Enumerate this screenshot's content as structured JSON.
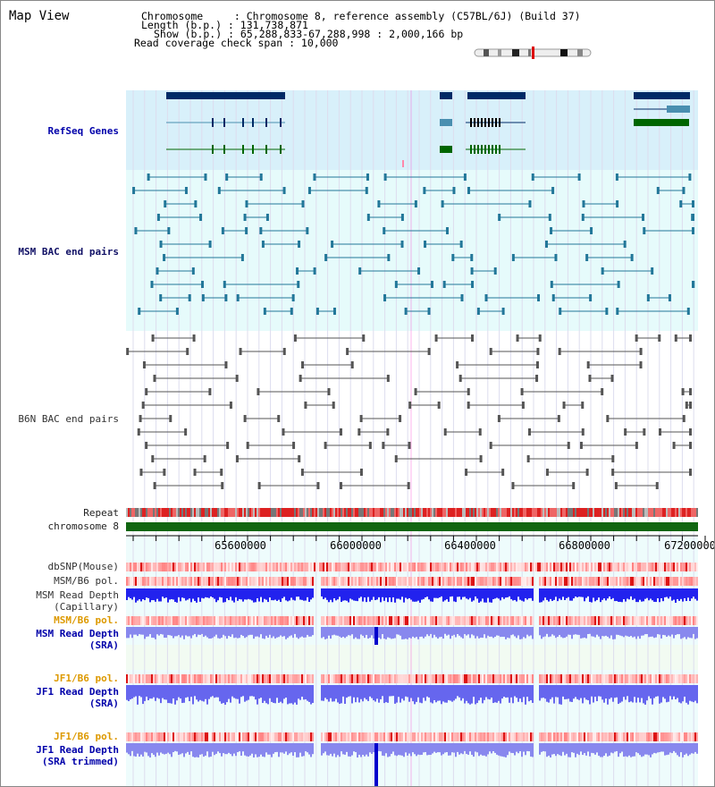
{
  "header": {
    "title": "Map View",
    "chromosome_line": "Chromosome     : Chromosome 8, reference assembly (C57BL/6J) (Build 37)",
    "length_line": "Length (b.p.) : 131,738,871",
    "show_line": "Show (b.p.) : 65,288,833-67,288,998 : 2,000,166 bp",
    "coverage_line": "Read coverage check span : 10,000"
  },
  "tracks": {
    "refseq": "RefSeq Genes",
    "msm_bac": "MSM BAC end pairs",
    "b6n_bac": "B6N BAC end pairs",
    "repeat": "Repeat",
    "chromosome": "chromosome 8",
    "dbsnp": "dbSNP(Mouse)",
    "msm_b6_pol": "MSM/B6 pol.",
    "msm_depth_cap_1": "MSM Read Depth",
    "msm_depth_cap_2": "(Capillary)",
    "msm_b6_pol_2": "MSM/B6 pol.",
    "msm_depth_sra_1": "MSM Read Depth",
    "msm_depth_sra_2": "(SRA)",
    "jf1_b6_pol": "JF1/B6 pol.",
    "jf1_depth_sra_1": "JF1 Read Depth",
    "jf1_depth_sra_2": "(SRA)",
    "jf1_b6_pol_2": "JF1/B6 pol.",
    "jf1_depth_trim_1": "JF1 Read Depth",
    "jf1_depth_trim_2": "(SRA trimmed)"
  },
  "axis": {
    "ticks": [
      "65600000",
      "66000000",
      "66400000",
      "66800000",
      "67200000"
    ]
  },
  "colors": {
    "refseq_bg": "#d8f0fa",
    "msm_bg": "#e6fbfb",
    "b6n_bg": "#ffffff",
    "gene_dark": "#002a66",
    "gene_teal": "#4a8fb0",
    "gene_green": "#006600",
    "msm_pair": "#227799",
    "b6n_pair": "#555555",
    "repeat_red": "#dd2222",
    "chrom_green": "#116611",
    "depth_blue": "#3333ee",
    "sra_blue": "#8888ee"
  }
}
